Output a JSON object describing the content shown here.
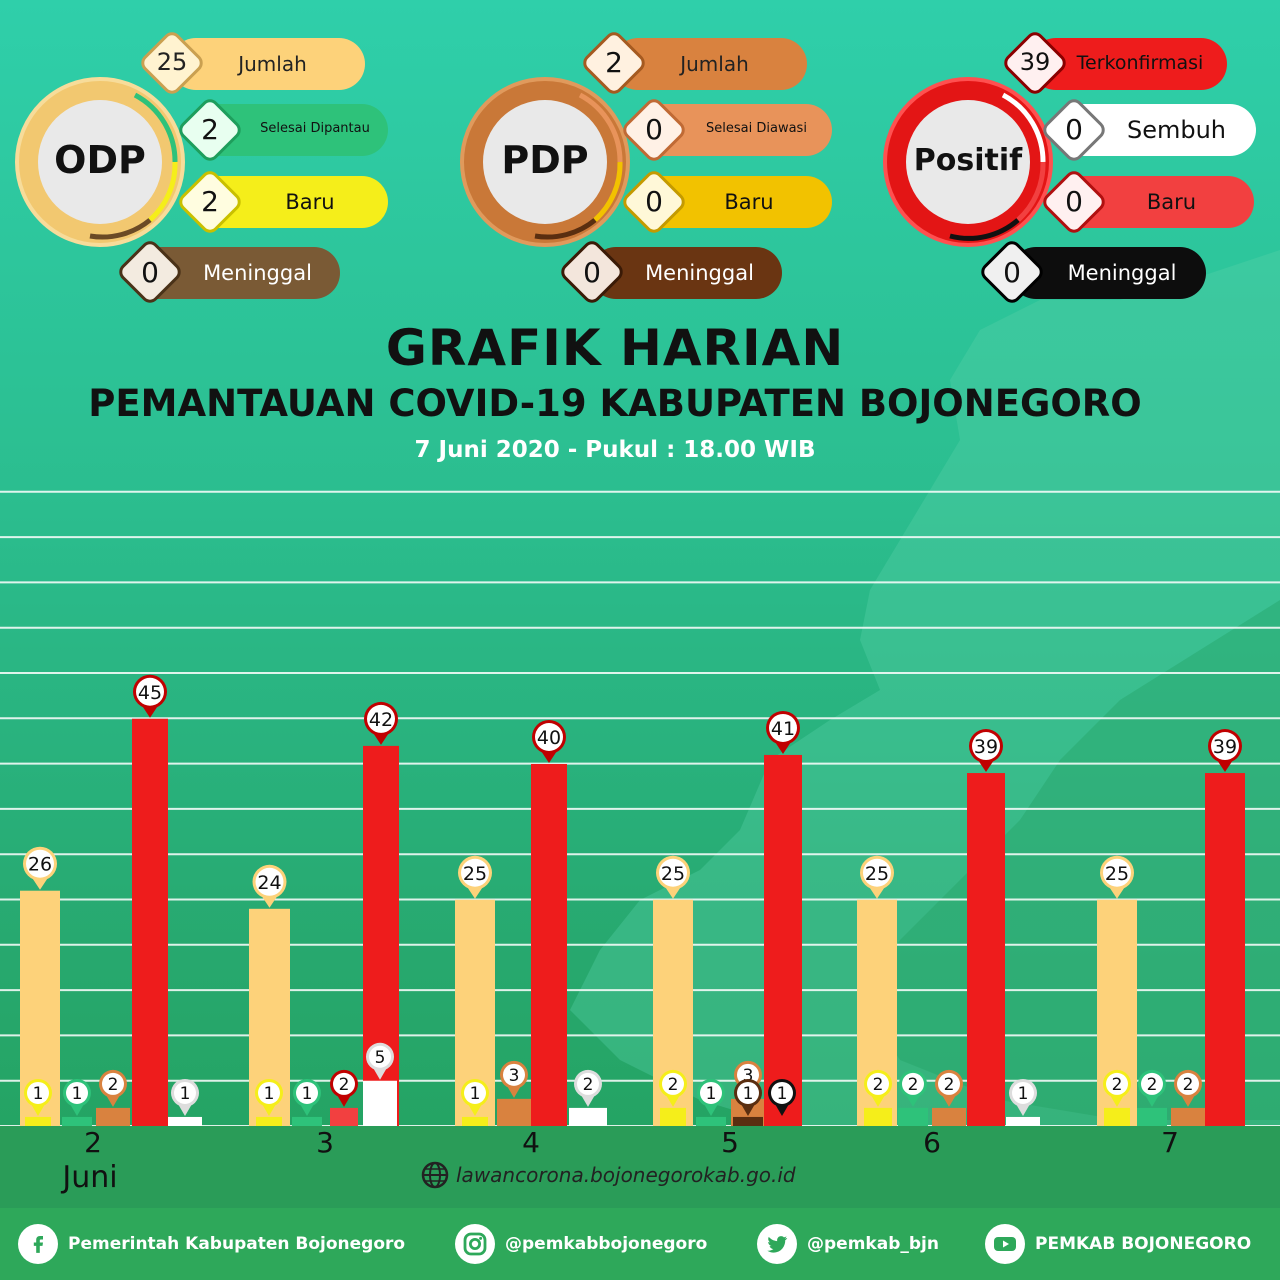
{
  "colors": {
    "odp_jumlah": "#fdd27a",
    "odp_selesai": "#2ec27a",
    "odp_baru": "#f5ee1a",
    "odp_meninggal": "#6b4a25",
    "pdp_jumlah": "#d9823f",
    "pdp_selesai": "#e8935a",
    "pdp_baru": "#f2c200",
    "pdp_meninggal": "#5a2e10",
    "positif_terkonfirmasi": "#ee1c1c",
    "positif_sembuh": "#ffffff",
    "positif_baru": "#f24040",
    "positif_meninggal": "#111111"
  },
  "summary": {
    "odp": {
      "name": "ODP",
      "jumlah": {
        "value": "25",
        "label": "Jumlah"
      },
      "selesai": {
        "value": "2",
        "label": "Selesai Dipantau"
      },
      "baru": {
        "value": "2",
        "label": "Baru"
      },
      "meninggal": {
        "value": "0",
        "label": "Meninggal"
      }
    },
    "pdp": {
      "name": "PDP",
      "jumlah": {
        "value": "2",
        "label": "Jumlah"
      },
      "selesai": {
        "value": "0",
        "label": "Selesai Diawasi"
      },
      "baru": {
        "value": "0",
        "label": "Baru"
      },
      "meninggal": {
        "value": "0",
        "label": "Meninggal"
      }
    },
    "positif": {
      "name": "Positif",
      "terkonfirmasi": {
        "value": "39",
        "label": "Terkonfirmasi"
      },
      "sembuh": {
        "value": "0",
        "label": "Sembuh"
      },
      "baru": {
        "value": "0",
        "label": "Baru"
      },
      "meninggal": {
        "value": "0",
        "label": "Meninggal"
      }
    }
  },
  "header": {
    "title": "GRAFIK HARIAN",
    "subtitle": "PEMANTAUAN COVID-19 KABUPATEN BOJONEGORO",
    "datetime": "7 Juni 2020 - Pukul : 18.00 WIB"
  },
  "chart_data": {
    "type": "bar",
    "title": "GRAFIK HARIAN",
    "month_label": "Juni",
    "categories": [
      "2",
      "3",
      "4",
      "5",
      "6",
      "7"
    ],
    "grid": true,
    "groups": [
      {
        "day": "2",
        "bars": [
          {
            "color": "#fdd27a",
            "value": 26
          },
          {
            "color": "#f5ee1a",
            "value": 1
          },
          {
            "color": "#2ec27a",
            "value": 1
          },
          {
            "color": "#d9823f",
            "value": 2
          },
          {
            "color": "#ee1c1c",
            "value": 45
          },
          {
            "color": "#ffffff",
            "value": 1
          }
        ]
      },
      {
        "day": "3",
        "bars": [
          {
            "color": "#fdd27a",
            "value": 24
          },
          {
            "color": "#f5ee1a",
            "value": 1
          },
          {
            "color": "#2ec27a",
            "value": 1
          },
          {
            "color": "#f24040",
            "value": 2
          },
          {
            "color": "#ee1c1c",
            "value": 42
          },
          {
            "color": "#ffffff",
            "value": 5
          }
        ]
      },
      {
        "day": "4",
        "bars": [
          {
            "color": "#fdd27a",
            "value": 25
          },
          {
            "color": "#f5ee1a",
            "value": 1
          },
          {
            "color": "#d9823f",
            "value": 3
          },
          {
            "color": "#ee1c1c",
            "value": 40
          },
          {
            "color": "#ffffff",
            "value": 2
          }
        ]
      },
      {
        "day": "5",
        "bars": [
          {
            "color": "#fdd27a",
            "value": 25
          },
          {
            "color": "#f5ee1a",
            "value": 2
          },
          {
            "color": "#2ec27a",
            "value": 1
          },
          {
            "color": "#d9823f",
            "value": 3
          },
          {
            "color": "#5a2e10",
            "value": 1
          },
          {
            "color": "#111111",
            "value": 1
          },
          {
            "color": "#ee1c1c",
            "value": 41
          }
        ]
      },
      {
        "day": "6",
        "bars": [
          {
            "color": "#fdd27a",
            "value": 25
          },
          {
            "color": "#f5ee1a",
            "value": 2
          },
          {
            "color": "#2ec27a",
            "value": 2
          },
          {
            "color": "#d9823f",
            "value": 2
          },
          {
            "color": "#ee1c1c",
            "value": 39
          },
          {
            "color": "#ffffff",
            "value": 1
          }
        ]
      },
      {
        "day": "7",
        "bars": [
          {
            "color": "#fdd27a",
            "value": 25
          },
          {
            "color": "#f5ee1a",
            "value": 2
          },
          {
            "color": "#2ec27a",
            "value": 2
          },
          {
            "color": "#d9823f",
            "value": 2
          },
          {
            "color": "#ee1c1c",
            "value": 39
          }
        ]
      }
    ]
  },
  "website": {
    "icon": "globe-icon",
    "url": "lawancorona.bojonegorokab.go.id"
  },
  "footer": [
    {
      "icon": "facebook-icon",
      "label": "Pemerintah Kabupaten Bojonegoro"
    },
    {
      "icon": "instagram-icon",
      "label": "@pemkabbojonegoro"
    },
    {
      "icon": "twitter-icon",
      "label": "@pemkab_bjn"
    },
    {
      "icon": "youtube-icon",
      "label": "PEMKAB BOJONEGORO"
    }
  ]
}
